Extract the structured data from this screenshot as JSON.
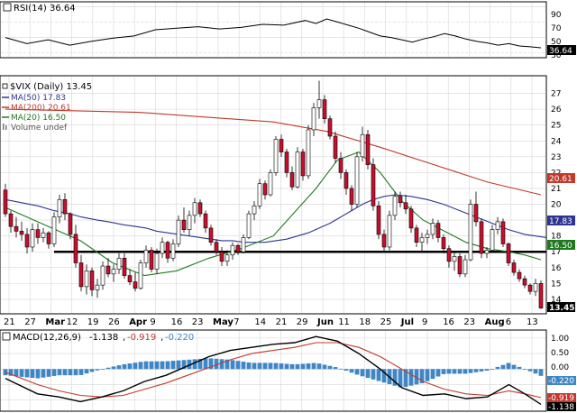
{
  "colors": {
    "up_candle": "#ffffff",
    "down_candle": "#c8102e",
    "candle_outline": "#000000",
    "ma50": "#2c3590",
    "ma200": "#c0392b",
    "ma20": "#1f7a1f",
    "rsi_line": "#000000",
    "macd_line": "#000000",
    "signal_line": "#c0392b",
    "histogram": "#3f86c4",
    "support_line": "#000000",
    "grid": "#d6d6d6",
    "frame": "#000000"
  },
  "rsi_panel": {
    "legend": "RSI(14) 36.64",
    "ticks": [
      "90",
      "70",
      "50",
      "30"
    ],
    "last_label": "36.64"
  },
  "price_panel": {
    "legend": {
      "title": "$VIX (Daily) 13.45",
      "ma50": "MA(50) 17.83",
      "ma200": "MA(200) 20.61",
      "ma20": "MA(20) 16.50",
      "volume": "Volume undef"
    },
    "y_ticks": [
      "27",
      "26",
      "25",
      "24",
      "23",
      "22",
      "21",
      "20",
      "19",
      "18",
      "17",
      "16",
      "15",
      "14"
    ],
    "last_labels": {
      "ma200": "20.61",
      "ma50": "17.83",
      "ma20": "16.50",
      "price": "13.45"
    }
  },
  "x_axis": {
    "labels": [
      "21",
      "27",
      "Mar",
      "12",
      "19",
      "26",
      "Apr",
      "9",
      "16",
      "23",
      "May",
      "7",
      "14",
      "21",
      "29",
      "Jun",
      "11",
      "18",
      "25",
      "Jul",
      "9",
      "16",
      "23",
      "Aug",
      "6",
      "13"
    ]
  },
  "macd_panel": {
    "legend": {
      "name": "MACD(12,26,9)",
      "macd": "-1.138",
      "signal": "-0.919",
      "hist": "-0.220"
    },
    "ticks": [
      "1.00",
      "0.50",
      "0.00",
      "-0.50",
      "-1.00"
    ],
    "last_labels": {
      "hist": "-0.220",
      "signal": "-0.919",
      "macd": "-1.138"
    }
  },
  "chart_data": {
    "type": "candlestick",
    "title": "$VIX (Daily) 13.45",
    "ylim": [
      13.2,
      28.0
    ],
    "support_level": 17.0,
    "ohlc": [
      [
        20.9,
        21.3,
        19.2,
        19.4
      ],
      [
        19.4,
        19.6,
        18.2,
        18.6
      ],
      [
        18.6,
        19.2,
        17.9,
        18.3
      ],
      [
        18.3,
        18.9,
        17.7,
        18.1
      ],
      [
        18.1,
        18.5,
        16.9,
        17.3
      ],
      [
        17.3,
        18.8,
        17.0,
        18.4
      ],
      [
        18.4,
        18.8,
        17.5,
        17.9
      ],
      [
        17.9,
        18.5,
        17.6,
        18.2
      ],
      [
        18.2,
        18.3,
        17.2,
        17.5
      ],
      [
        17.5,
        19.5,
        17.3,
        19.2
      ],
      [
        19.2,
        20.6,
        18.8,
        20.3
      ],
      [
        20.3,
        20.7,
        19.0,
        19.4
      ],
      [
        19.4,
        19.5,
        17.8,
        18.1
      ],
      [
        18.1,
        18.7,
        16.0,
        16.3
      ],
      [
        16.3,
        16.8,
        14.5,
        14.8
      ],
      [
        14.8,
        16.2,
        14.3,
        15.8
      ],
      [
        15.8,
        16.0,
        14.2,
        14.6
      ],
      [
        14.6,
        15.3,
        14.1,
        14.9
      ],
      [
        14.9,
        16.4,
        14.6,
        16.1
      ],
      [
        16.1,
        16.6,
        15.4,
        15.6
      ],
      [
        15.6,
        16.2,
        15.1,
        15.9
      ],
      [
        15.9,
        16.9,
        15.6,
        16.6
      ],
      [
        16.6,
        16.9,
        15.3,
        15.5
      ],
      [
        15.5,
        15.9,
        14.9,
        15.1
      ],
      [
        15.1,
        15.7,
        14.5,
        14.7
      ],
      [
        14.7,
        16.5,
        14.6,
        16.3
      ],
      [
        16.3,
        17.4,
        16.0,
        17.1
      ],
      [
        17.1,
        17.3,
        15.7,
        15.9
      ],
      [
        15.9,
        17.2,
        15.6,
        16.9
      ],
      [
        16.9,
        17.9,
        16.6,
        17.6
      ],
      [
        17.6,
        17.7,
        16.3,
        16.6
      ],
      [
        16.6,
        17.8,
        16.4,
        17.5
      ],
      [
        17.5,
        19.3,
        17.3,
        19.0
      ],
      [
        19.0,
        19.8,
        18.2,
        18.4
      ],
      [
        18.4,
        19.6,
        18.0,
        19.3
      ],
      [
        19.3,
        20.4,
        18.8,
        20.1
      ],
      [
        20.1,
        20.3,
        19.2,
        19.4
      ],
      [
        19.4,
        19.6,
        18.2,
        18.5
      ],
      [
        18.5,
        18.7,
        17.4,
        17.6
      ],
      [
        17.6,
        17.8,
        16.8,
        17.0
      ],
      [
        17.0,
        17.3,
        16.1,
        16.4
      ],
      [
        16.4,
        17.1,
        16.1,
        16.8
      ],
      [
        16.8,
        17.6,
        16.5,
        17.4
      ],
      [
        17.4,
        17.5,
        16.8,
        17.0
      ],
      [
        17.0,
        18.1,
        16.9,
        17.9
      ],
      [
        17.9,
        19.6,
        17.8,
        19.4
      ],
      [
        19.4,
        20.2,
        19.0,
        19.9
      ],
      [
        19.9,
        21.6,
        19.7,
        21.3
      ],
      [
        21.3,
        21.5,
        20.3,
        20.6
      ],
      [
        20.6,
        22.2,
        20.5,
        22.0
      ],
      [
        22.0,
        24.3,
        21.8,
        24.1
      ],
      [
        24.1,
        24.4,
        23.0,
        23.3
      ],
      [
        23.3,
        23.5,
        21.7,
        22.0
      ],
      [
        22.0,
        22.4,
        20.9,
        21.1
      ],
      [
        21.1,
        23.6,
        21.0,
        23.3
      ],
      [
        23.3,
        23.5,
        21.5,
        21.8
      ],
      [
        21.8,
        25.0,
        21.6,
        24.7
      ],
      [
        24.7,
        26.4,
        24.3,
        26.1
      ],
      [
        26.1,
        27.8,
        25.4,
        26.6
      ],
      [
        26.6,
        26.9,
        25.1,
        25.4
      ],
      [
        25.4,
        25.6,
        24.1,
        24.3
      ],
      [
        24.3,
        24.6,
        22.6,
        22.9
      ],
      [
        22.9,
        23.3,
        21.6,
        22.0
      ],
      [
        22.0,
        22.2,
        20.6,
        21.0
      ],
      [
        21.0,
        21.2,
        19.6,
        20.0
      ],
      [
        20.0,
        23.3,
        19.8,
        23.0
      ],
      [
        23.0,
        24.9,
        22.7,
        24.4
      ],
      [
        24.4,
        24.7,
        22.2,
        22.5
      ],
      [
        22.5,
        22.9,
        19.6,
        19.9
      ],
      [
        19.9,
        20.2,
        17.8,
        18.1
      ],
      [
        18.1,
        18.4,
        17.0,
        17.3
      ],
      [
        17.3,
        19.6,
        17.1,
        19.3
      ],
      [
        19.3,
        20.8,
        19.0,
        20.5
      ],
      [
        20.5,
        20.8,
        19.8,
        20.1
      ],
      [
        20.1,
        20.6,
        19.4,
        19.7
      ],
      [
        19.7,
        19.9,
        18.2,
        18.5
      ],
      [
        18.5,
        18.7,
        17.3,
        17.6
      ],
      [
        17.6,
        18.2,
        17.0,
        17.9
      ],
      [
        17.9,
        18.4,
        17.5,
        18.1
      ],
      [
        18.1,
        19.1,
        17.8,
        18.8
      ],
      [
        18.8,
        19.0,
        17.6,
        17.9
      ],
      [
        17.9,
        18.1,
        16.9,
        17.2
      ],
      [
        17.2,
        17.4,
        16.0,
        16.4
      ],
      [
        16.4,
        17.0,
        15.8,
        16.7
      ],
      [
        16.7,
        16.9,
        15.4,
        15.6
      ],
      [
        15.6,
        16.8,
        15.4,
        16.5
      ],
      [
        16.5,
        20.3,
        16.4,
        20.0
      ],
      [
        20.0,
        20.8,
        18.6,
        18.9
      ],
      [
        18.9,
        19.1,
        16.6,
        16.9
      ],
      [
        16.9,
        17.3,
        16.6,
        17.1
      ],
      [
        17.1,
        18.7,
        17.0,
        18.4
      ],
      [
        18.4,
        19.2,
        18.1,
        18.9
      ],
      [
        18.9,
        19.1,
        17.3,
        17.5
      ],
      [
        17.5,
        17.6,
        16.1,
        16.3
      ],
      [
        16.3,
        16.5,
        15.5,
        15.7
      ],
      [
        15.7,
        15.9,
        15.1,
        15.3
      ],
      [
        15.3,
        15.5,
        14.7,
        14.9
      ],
      [
        14.9,
        15.0,
        14.3,
        14.5
      ],
      [
        14.5,
        15.3,
        14.2,
        15.0
      ],
      [
        15.0,
        15.2,
        13.4,
        13.45
      ]
    ],
    "ma50": [
      20.3,
      20.1,
      19.9,
      19.6,
      19.4,
      19.2,
      19.0,
      18.9,
      18.7,
      18.6,
      18.5,
      18.3,
      18.2,
      18.1,
      18.0,
      17.9,
      17.8,
      17.7,
      17.7,
      17.6,
      17.6,
      17.6,
      17.7,
      17.8,
      18.0,
      18.2,
      18.5,
      18.8,
      19.2,
      19.6,
      20.0,
      20.3,
      20.5,
      20.6,
      20.5,
      20.3,
      20.0,
      19.6,
      19.2,
      18.8,
      18.4,
      18.1,
      18.0,
      17.9
    ],
    "ma50_bars": [
      0,
      3,
      6,
      9,
      12,
      14,
      17,
      19,
      22,
      24,
      26,
      28,
      30,
      32,
      34,
      36,
      38,
      40,
      42,
      44,
      46,
      48,
      50,
      52,
      54,
      56,
      58,
      60,
      62,
      64,
      66,
      68,
      70,
      72,
      75,
      78,
      81,
      84,
      87,
      90,
      93,
      96,
      98,
      100
    ],
    "ma200": [
      [
        0,
        26.0
      ],
      [
        25,
        25.8
      ],
      [
        50,
        25.2
      ],
      [
        60,
        24.6
      ],
      [
        70,
        23.6
      ],
      [
        80,
        22.5
      ],
      [
        90,
        21.4
      ],
      [
        100,
        20.6
      ]
    ],
    "ma20": [
      [
        0,
        19.8
      ],
      [
        8,
        18.6
      ],
      [
        14,
        17.7
      ],
      [
        20,
        16.3
      ],
      [
        26,
        15.5
      ],
      [
        32,
        15.8
      ],
      [
        38,
        16.6
      ],
      [
        44,
        17.2
      ],
      [
        50,
        18.0
      ],
      [
        54,
        19.5
      ],
      [
        58,
        21.0
      ],
      [
        62,
        22.8
      ],
      [
        66,
        23.3
      ],
      [
        70,
        22.0
      ],
      [
        74,
        20.2
      ],
      [
        78,
        19.0
      ],
      [
        82,
        18.3
      ],
      [
        86,
        17.6
      ],
      [
        90,
        17.2
      ],
      [
        94,
        17.0
      ],
      [
        97,
        16.8
      ],
      [
        100,
        16.5
      ]
    ],
    "rsi": {
      "ylim": [
        25,
        95
      ],
      "values": [
        [
          0,
          50
        ],
        [
          4,
          42
        ],
        [
          8,
          47
        ],
        [
          12,
          40
        ],
        [
          16,
          45
        ],
        [
          20,
          49
        ],
        [
          24,
          52
        ],
        [
          28,
          60
        ],
        [
          32,
          62
        ],
        [
          36,
          64
        ],
        [
          40,
          61
        ],
        [
          44,
          63
        ],
        [
          48,
          67
        ],
        [
          52,
          66
        ],
        [
          56,
          72
        ],
        [
          58,
          68
        ],
        [
          60,
          74
        ],
        [
          62,
          70
        ],
        [
          64,
          66
        ],
        [
          66,
          62
        ],
        [
          68,
          57
        ],
        [
          70,
          52
        ],
        [
          72,
          50
        ],
        [
          74,
          47
        ],
        [
          76,
          44
        ],
        [
          78,
          48
        ],
        [
          80,
          51
        ],
        [
          82,
          55
        ],
        [
          84,
          52
        ],
        [
          86,
          48
        ],
        [
          88,
          45
        ],
        [
          90,
          43
        ],
        [
          92,
          40
        ],
        [
          94,
          42
        ],
        [
          96,
          39
        ],
        [
          98,
          38
        ],
        [
          100,
          36.64
        ]
      ]
    },
    "macd": {
      "ylim": [
        -1.3,
        1.2
      ],
      "macd": [
        [
          0,
          -0.3
        ],
        [
          6,
          -0.8
        ],
        [
          10,
          -0.9
        ],
        [
          14,
          -1.05
        ],
        [
          18,
          -0.9
        ],
        [
          22,
          -0.7
        ],
        [
          26,
          -0.4
        ],
        [
          30,
          -0.2
        ],
        [
          34,
          0.1
        ],
        [
          38,
          0.4
        ],
        [
          42,
          0.6
        ],
        [
          46,
          0.7
        ],
        [
          50,
          0.8
        ],
        [
          54,
          0.85
        ],
        [
          58,
          1.05
        ],
        [
          62,
          0.9
        ],
        [
          66,
          0.5
        ],
        [
          70,
          0.0
        ],
        [
          74,
          -0.6
        ],
        [
          78,
          -0.85
        ],
        [
          82,
          -0.8
        ],
        [
          86,
          -0.95
        ],
        [
          90,
          -0.9
        ],
        [
          94,
          -0.5
        ],
        [
          97,
          -0.8
        ],
        [
          100,
          -1.138
        ]
      ],
      "signal": [
        [
          0,
          -0.1
        ],
        [
          6,
          -0.5
        ],
        [
          10,
          -0.7
        ],
        [
          14,
          -0.85
        ],
        [
          18,
          -0.9
        ],
        [
          22,
          -0.85
        ],
        [
          26,
          -0.65
        ],
        [
          30,
          -0.45
        ],
        [
          34,
          -0.2
        ],
        [
          38,
          0.05
        ],
        [
          42,
          0.3
        ],
        [
          46,
          0.5
        ],
        [
          50,
          0.6
        ],
        [
          54,
          0.7
        ],
        [
          58,
          0.85
        ],
        [
          62,
          0.85
        ],
        [
          66,
          0.7
        ],
        [
          70,
          0.4
        ],
        [
          74,
          0.0
        ],
        [
          78,
          -0.4
        ],
        [
          82,
          -0.65
        ],
        [
          86,
          -0.8
        ],
        [
          90,
          -0.85
        ],
        [
          94,
          -0.7
        ],
        [
          97,
          -0.8
        ],
        [
          100,
          -0.919
        ]
      ],
      "hist_last": -0.22
    }
  }
}
